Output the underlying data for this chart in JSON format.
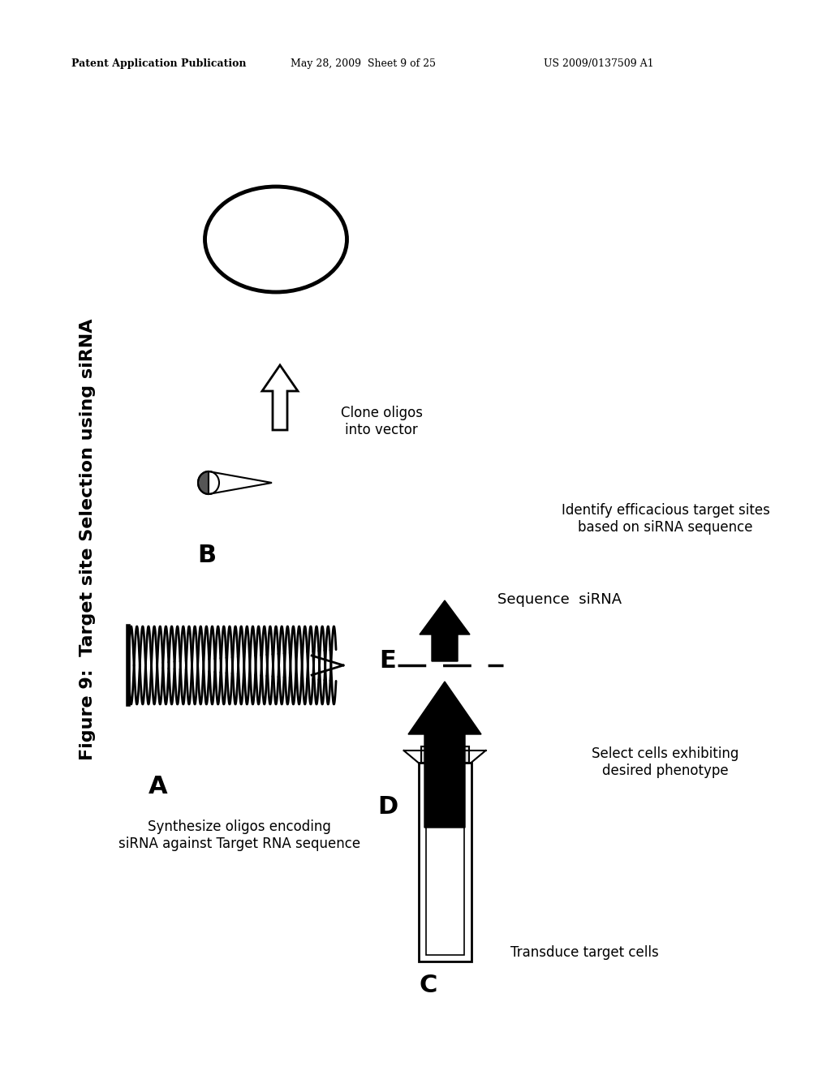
{
  "bg_color": "#ffffff",
  "header_text": "Patent Application Publication",
  "header_date": "May 28, 2009  Sheet 9 of 25",
  "header_patent": "US 2009/0137509 A1",
  "figure_title": "Figure 9:  Target site Selection using siRNA",
  "label_A": "A",
  "label_B": "B",
  "label_C": "C",
  "label_D": "D",
  "label_E": "E",
  "text_A": "Synthesize oligos encoding\nsiRNA against Target RNA sequence",
  "text_B": "Clone oligos\ninto vector",
  "text_C": "Transduce target cells",
  "text_D": "Select cells exhibiting\ndesired phenotype",
  "text_E_top": "Sequence  siRNA",
  "text_E_bot": "Identify efficacious target sites\nbased on siRNA sequence"
}
